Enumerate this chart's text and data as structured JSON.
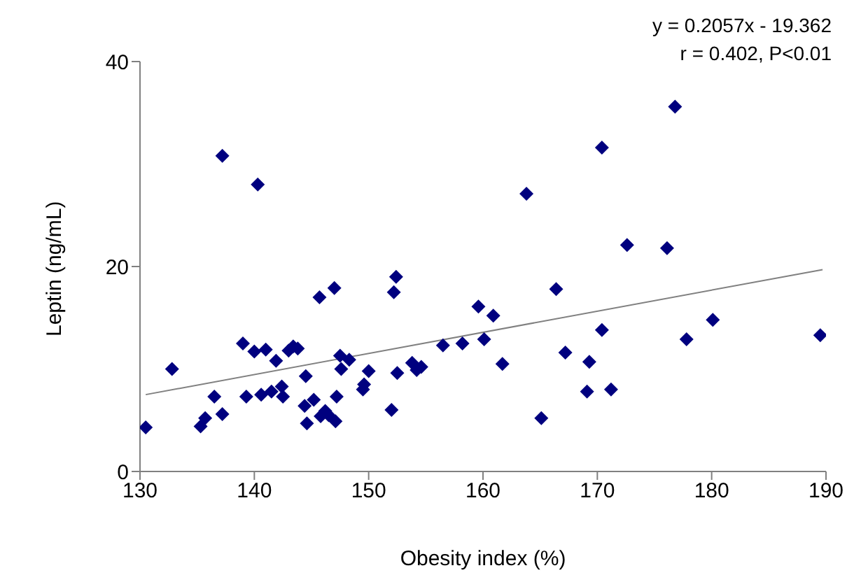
{
  "chart_data": {
    "type": "scatter",
    "xlabel": "Obesity index (%)",
    "ylabel": "Leptin (ng/mL)",
    "annotations": [
      "y = 0.2057x - 19.362",
      "r = 0.402, P<0.01"
    ],
    "xlim": [
      130,
      190
    ],
    "xticks": [
      130,
      140,
      150,
      160,
      170,
      180,
      190
    ],
    "ylim": [
      0,
      40
    ],
    "yticks": [
      0,
      20,
      40
    ],
    "grid": false,
    "legend": false,
    "series": [
      {
        "marker": "diamond",
        "color": "#00007f",
        "x": [
          130.5,
          132.8,
          135.3,
          135.7,
          136.5,
          137.2,
          137.2,
          139.0,
          139.3,
          140.0,
          140.3,
          140.6,
          141.0,
          141.5,
          141.9,
          142.4,
          142.5,
          143.0,
          143.4,
          143.8,
          144.4,
          144.5,
          144.6,
          145.2,
          145.7,
          145.8,
          146.2,
          146.5,
          147.0,
          147.1,
          147.2,
          147.5,
          147.6,
          148.3,
          149.5,
          149.6,
          150.0,
          152.0,
          152.2,
          152.4,
          152.5,
          153.8,
          154.2,
          154.6,
          156.5,
          158.2,
          159.6,
          160.1,
          160.9,
          161.7,
          163.8,
          165.1,
          166.4,
          167.2,
          169.3,
          169.1,
          170.4,
          170.4,
          171.2,
          172.6,
          176.1,
          176.8,
          177.8,
          180.1,
          189.5
        ],
        "values": [
          4.3,
          10.0,
          4.4,
          5.2,
          7.3,
          5.6,
          30.8,
          12.5,
          7.3,
          11.7,
          28.0,
          7.5,
          11.9,
          7.8,
          10.8,
          8.3,
          7.3,
          11.8,
          12.2,
          12.0,
          6.4,
          9.3,
          4.7,
          7.0,
          17.0,
          5.4,
          5.9,
          5.5,
          17.9,
          4.9,
          7.3,
          11.3,
          10.0,
          10.9,
          8.0,
          8.5,
          9.8,
          6.0,
          17.5,
          19.0,
          9.6,
          10.6,
          9.9,
          10.2,
          12.3,
          12.5,
          16.1,
          12.9,
          15.2,
          10.5,
          27.1,
          5.2,
          17.8,
          11.6,
          10.7,
          7.8,
          31.6,
          13.8,
          8.0,
          22.1,
          21.8,
          35.6,
          12.9,
          14.8,
          13.3
        ]
      },
      {
        "type": "line",
        "color": "#808080",
        "x": [
          130.5,
          189.7
        ],
        "values": [
          7.5,
          19.7
        ]
      }
    ]
  }
}
